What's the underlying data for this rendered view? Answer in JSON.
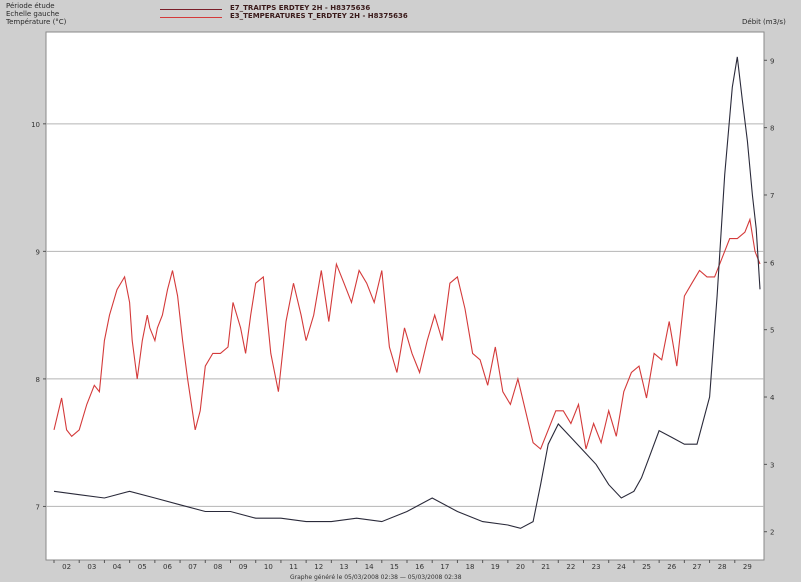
{
  "header": {
    "line1": "Période étude",
    "line2": "Echelle gauche",
    "left_unit": "Température (°C)",
    "right_unit": "Débit (m3/s)"
  },
  "legend": [
    {
      "label": "E7_TRAITPS ERDTEY 2H - H8375636",
      "color": "#7a1f2a"
    },
    {
      "label": "E3_TEMPERATURES T_ERDTEY 2H - H8375636",
      "color": "#d43a3a"
    }
  ],
  "footer": "Graphe généré le 05/03/2008 02:38 — 05/03/2008 02:38",
  "chart_data": {
    "type": "line",
    "title": "",
    "left_axis": {
      "label": "Température (°C)",
      "ticks": [
        7,
        8,
        9,
        10
      ],
      "range": [
        6.58,
        10.72
      ]
    },
    "right_axis": {
      "label": "Débit (m3/s)",
      "ticks": [
        2,
        3,
        4,
        5,
        6,
        7,
        8,
        9
      ],
      "range": [
        1.58,
        9.42
      ]
    },
    "x_ticks": [
      "02",
      "03",
      "04",
      "05",
      "06",
      "07",
      "08",
      "09",
      "10",
      "11",
      "12",
      "13",
      "14",
      "15",
      "16",
      "17",
      "18",
      "19",
      "20",
      "21",
      "22",
      "23",
      "24",
      "25",
      "26",
      "27",
      "28",
      "29"
    ],
    "grid": "horizontal",
    "series": [
      {
        "name": "E3_TEMPERATURES T_ERDTEY 2H - H8375636",
        "axis": "left",
        "color": "#d43a3a",
        "x": [
          0,
          0.3,
          0.5,
          0.7,
          1.0,
          1.3,
          1.6,
          1.8,
          2.0,
          2.2,
          2.5,
          2.8,
          3.0,
          3.1,
          3.3,
          3.5,
          3.7,
          3.8,
          4.0,
          4.1,
          4.3,
          4.5,
          4.7,
          4.9,
          5.1,
          5.3,
          5.6,
          5.8,
          6.0,
          6.3,
          6.6,
          6.9,
          7.1,
          7.4,
          7.6,
          7.8,
          8.0,
          8.3,
          8.6,
          8.9,
          9.2,
          9.5,
          9.8,
          10.0,
          10.3,
          10.6,
          10.9,
          11.2,
          11.5,
          11.8,
          12.1,
          12.4,
          12.7,
          13.0,
          13.3,
          13.6,
          13.9,
          14.2,
          14.5,
          14.8,
          15.1,
          15.4,
          15.7,
          16.0,
          16.3,
          16.6,
          16.9,
          17.2,
          17.5,
          17.8,
          18.1,
          18.4,
          18.7,
          19.0,
          19.3,
          19.6,
          19.9,
          20.2,
          20.5,
          20.8,
          21.1,
          21.4,
          21.7,
          22.0,
          22.3,
          22.6,
          22.9,
          23.2,
          23.5,
          23.8,
          24.1,
          24.4,
          24.7,
          25.0,
          25.3,
          25.6,
          25.9,
          26.2,
          26.5,
          26.8,
          27.1,
          27.4,
          27.6,
          27.8,
          28.0
        ],
        "y": [
          7.6,
          7.85,
          7.6,
          7.55,
          7.6,
          7.8,
          7.95,
          7.9,
          8.3,
          8.5,
          8.7,
          8.8,
          8.6,
          8.3,
          8.0,
          8.3,
          8.5,
          8.4,
          8.3,
          8.4,
          8.5,
          8.7,
          8.85,
          8.65,
          8.3,
          8.0,
          7.6,
          7.75,
          8.1,
          8.2,
          8.2,
          8.25,
          8.6,
          8.4,
          8.2,
          8.5,
          8.75,
          8.8,
          8.2,
          7.9,
          8.45,
          8.75,
          8.5,
          8.3,
          8.5,
          8.85,
          8.45,
          8.9,
          8.75,
          8.6,
          8.85,
          8.75,
          8.6,
          8.85,
          8.25,
          8.05,
          8.4,
          8.2,
          8.05,
          8.3,
          8.5,
          8.3,
          8.75,
          8.8,
          8.55,
          8.2,
          8.15,
          7.95,
          8.25,
          7.9,
          7.8,
          8.0,
          7.75,
          7.5,
          7.45,
          7.6,
          7.75,
          7.75,
          7.65,
          7.8,
          7.45,
          7.65,
          7.5,
          7.75,
          7.55,
          7.9,
          8.05,
          8.1,
          7.85,
          8.2,
          8.15,
          8.45,
          8.1,
          8.65,
          8.75,
          8.85,
          8.8,
          8.8,
          8.95,
          9.1,
          9.1,
          9.15,
          9.25,
          9.0,
          8.9
        ]
      },
      {
        "name": "E7_TRAITPS ERDTEY 2H - H8375636",
        "axis": "right",
        "color": "#2a2a3a",
        "x": [
          0,
          1,
          2,
          3,
          4,
          5,
          6,
          7,
          8,
          9,
          10,
          11,
          12,
          13,
          14,
          15,
          16,
          17,
          18,
          18.5,
          19,
          19.3,
          19.6,
          20,
          20.5,
          21,
          21.5,
          22,
          22.5,
          23,
          23.3,
          23.6,
          24,
          24.5,
          25,
          25.5,
          26,
          26.3,
          26.6,
          26.9,
          27.1,
          27.3,
          27.5,
          27.7,
          27.85,
          28
        ],
        "y": [
          2.6,
          2.55,
          2.5,
          2.6,
          2.5,
          2.4,
          2.3,
          2.3,
          2.2,
          2.2,
          2.15,
          2.15,
          2.2,
          2.15,
          2.3,
          2.5,
          2.3,
          2.15,
          2.1,
          2.05,
          2.15,
          2.7,
          3.3,
          3.6,
          3.4,
          3.2,
          3.0,
          2.7,
          2.5,
          2.6,
          2.8,
          3.1,
          3.5,
          3.4,
          3.3,
          3.3,
          4.0,
          5.5,
          7.3,
          8.6,
          9.05,
          8.4,
          7.8,
          7.0,
          6.5,
          5.6
        ]
      }
    ]
  }
}
